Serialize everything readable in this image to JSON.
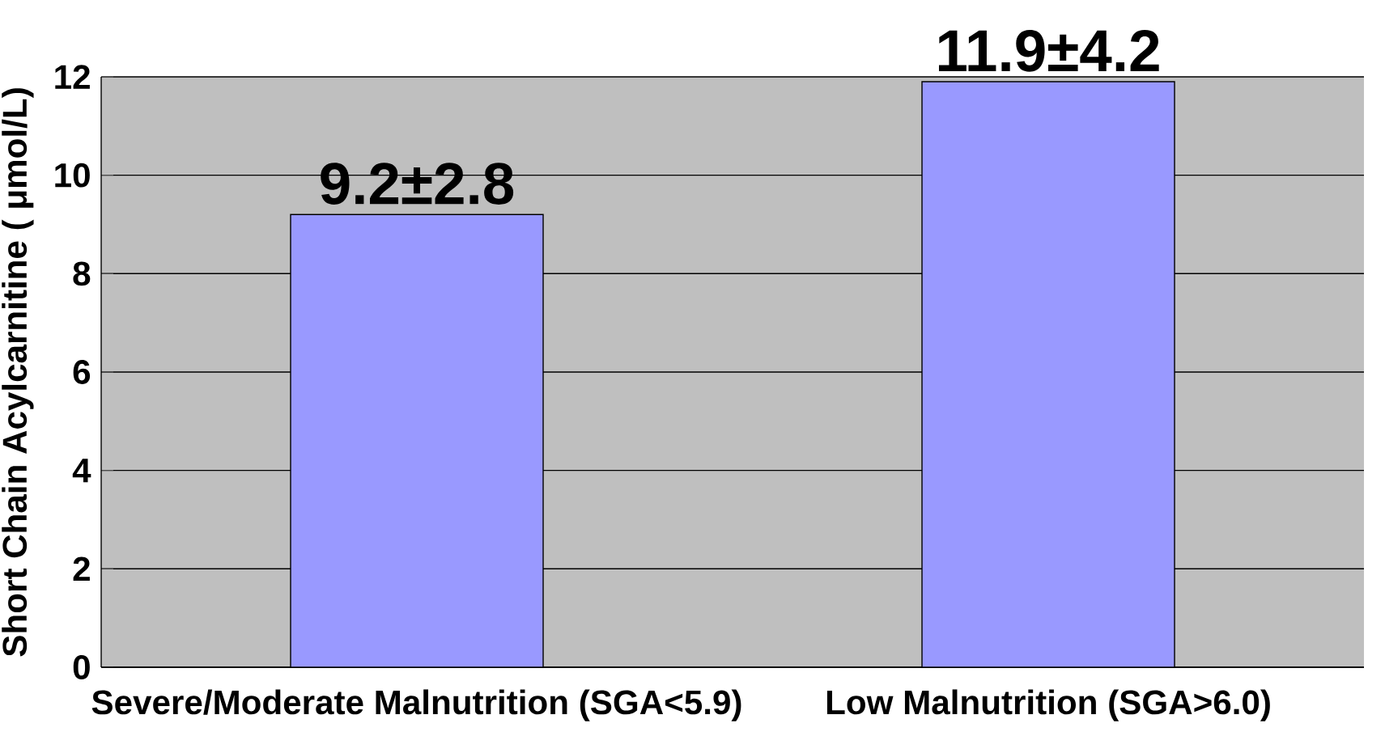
{
  "chart_data": {
    "type": "bar",
    "ylabel": "Short Chain Acylcarnitine ( μmol/L)",
    "categories": [
      "Severe/Moderate Malnutrition (SGA<5.9)",
      "Low Malnutrition (SGA>6.0)"
    ],
    "values": [
      9.2,
      11.9
    ],
    "value_labels": [
      "9.2±2.8",
      "11.9±4.2"
    ],
    "color": "#9999ff",
    "ylim": [
      0,
      12
    ],
    "yticks": [
      0,
      2,
      4,
      6,
      8,
      10,
      12
    ],
    "grid": "y"
  }
}
